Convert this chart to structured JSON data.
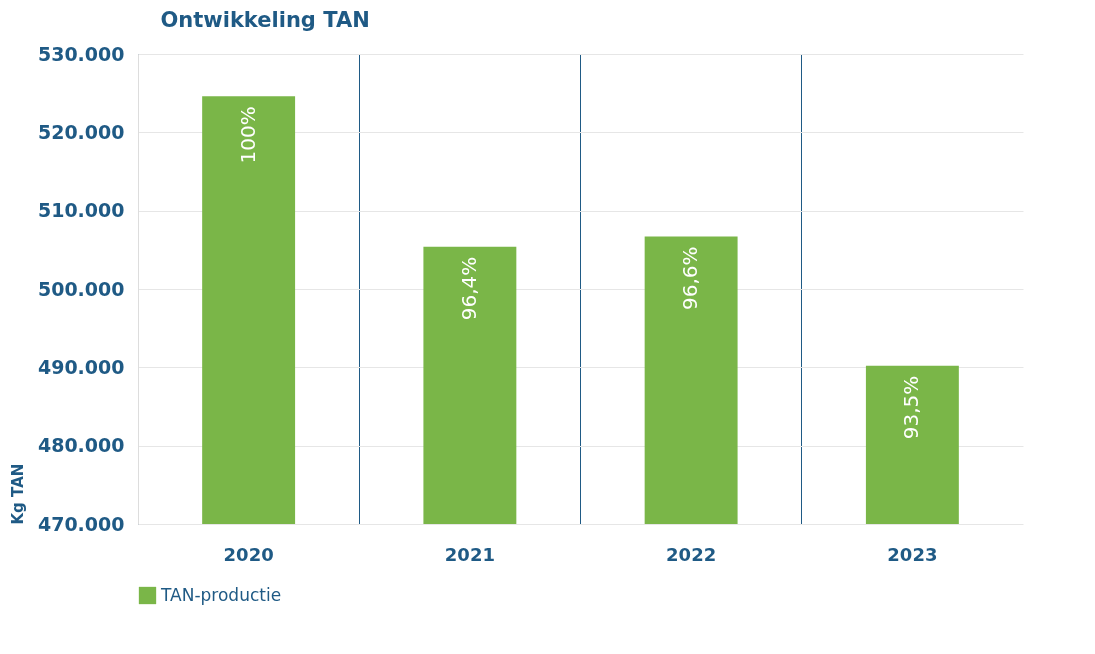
{
  "chart_data": {
    "type": "bar",
    "title": "Ontwikkeling TAN",
    "ylabel": "Kg TAN",
    "categories": [
      "2020",
      "2021",
      "2022",
      "2023"
    ],
    "series": [
      {
        "name": "TAN-productie",
        "color": "#7ab648",
        "values": [
          524600,
          505400,
          506700,
          490200
        ]
      }
    ],
    "annotations": [
      {
        "text": "100%",
        "x": "2020",
        "y": 524600
      },
      {
        "text": "96,4%",
        "x": "2021",
        "y": 505400
      },
      {
        "text": "96,6%",
        "x": "2022",
        "y": 506700
      },
      {
        "text": "93,5%",
        "x": "2023",
        "y": 490200
      }
    ],
    "ylim": [
      470000,
      530000
    ],
    "yticks": [
      {
        "value": 470000,
        "label": "470.000"
      },
      {
        "value": 480000,
        "label": "480.000"
      },
      {
        "value": 490000,
        "label": "490.000"
      },
      {
        "value": 500000,
        "label": "500.000"
      },
      {
        "value": 510000,
        "label": "510.000"
      },
      {
        "value": 520000,
        "label": "520.000"
      },
      {
        "value": 530000,
        "label": "530.000"
      }
    ],
    "grid": true,
    "legend": "bottom left"
  }
}
